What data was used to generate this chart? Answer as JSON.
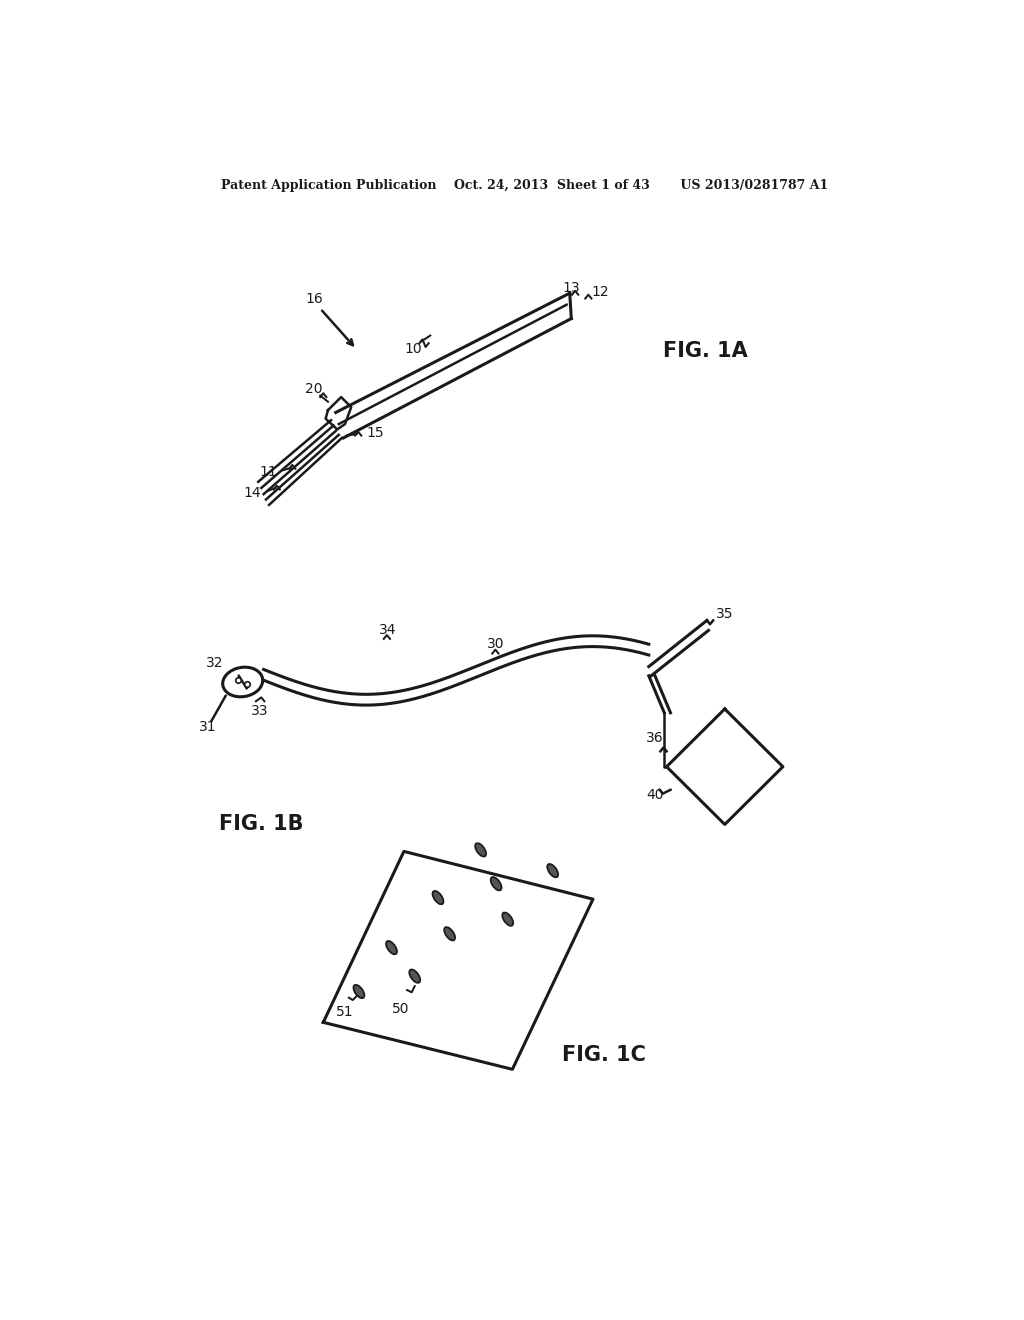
{
  "background_color": "#ffffff",
  "header_text": "Patent Application Publication    Oct. 24, 2013  Sheet 1 of 43       US 2013/0281787 A1",
  "fig1a_label": "FIG. 1A",
  "fig1b_label": "FIG. 1B",
  "fig1c_label": "FIG. 1C",
  "line_color": "#1a1a1a",
  "line_width": 1.8,
  "label_fontsize": 10,
  "header_fontsize": 9,
  "figlabel_fontsize": 15
}
